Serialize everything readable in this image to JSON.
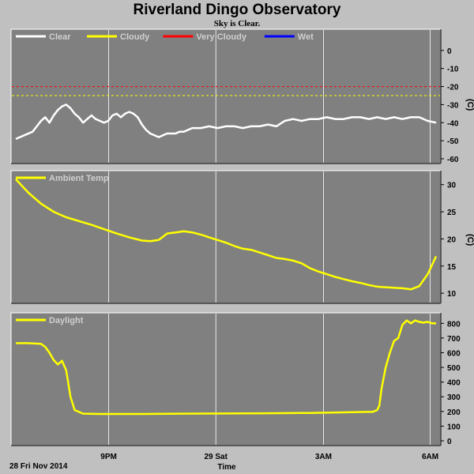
{
  "header": {
    "title": "Riverland Dingo Observatory",
    "subtitle": "Sky is Clear."
  },
  "footer": {
    "date_label": "28 Fri Nov 2014",
    "x_axis_label": "Time"
  },
  "colors": {
    "page_bg": "#c0c0c0",
    "panel_bg": "#808080",
    "grid": "#ffffff",
    "clear": "#ffffff",
    "cloudy": "#ffff00",
    "very_cloudy": "#ff0000",
    "wet": "#0000ff",
    "ambient": "#ffff00",
    "daylight": "#ffff00"
  },
  "chart_data": [
    {
      "type": "line",
      "name": "sky",
      "xlabel": "Time",
      "ylabel": "(C)",
      "ylim": [
        -60,
        10
      ],
      "xlim": [
        0,
        100
      ],
      "yticks": [
        0,
        -10,
        -20,
        -30,
        -40,
        -50,
        -60
      ],
      "x_ticks": [
        {
          "x": 22.1,
          "label": "9PM"
        },
        {
          "x": 47.6,
          "label": "29 Sat"
        },
        {
          "x": 73.2,
          "label": "3AM"
        },
        {
          "x": 98.6,
          "label": "6AM"
        }
      ],
      "legend": [
        {
          "label": "Clear",
          "color": "#ffffff"
        },
        {
          "label": "Cloudy",
          "color": "#ffff00"
        },
        {
          "label": "Very Cloudy",
          "color": "#ff0000"
        },
        {
          "label": "Wet",
          "color": "#0000ff"
        }
      ],
      "thresholds": [
        {
          "name": "Very Cloudy",
          "value": -20,
          "color": "#ff0000"
        },
        {
          "name": "Cloudy",
          "value": -25,
          "color": "#ffff00"
        }
      ],
      "series": [
        {
          "name": "Clear",
          "color": "#ffffff",
          "x": [
            0,
            2,
            4,
            5,
            6,
            7,
            8,
            9,
            10,
            11,
            12,
            13,
            14,
            15,
            16,
            17,
            18,
            19,
            20,
            21,
            22,
            23,
            24,
            25,
            26,
            27,
            28,
            29,
            30,
            31,
            32,
            33,
            34,
            35,
            36,
            37,
            38,
            39,
            40,
            41,
            42,
            44,
            46,
            48,
            50,
            52,
            54,
            56,
            58,
            60,
            62,
            64,
            66,
            68,
            70,
            72,
            74,
            76,
            78,
            80,
            82,
            84,
            86,
            88,
            90,
            92,
            94,
            96,
            98,
            100
          ],
          "y": [
            -49,
            -47,
            -45,
            -42,
            -39,
            -37,
            -40,
            -36,
            -33,
            -31,
            -30,
            -32,
            -35,
            -37,
            -40,
            -38,
            -36,
            -38,
            -39,
            -40,
            -39,
            -36,
            -35,
            -37,
            -35,
            -34,
            -35,
            -37,
            -41,
            -44,
            -46,
            -47,
            -48,
            -47,
            -46,
            -46,
            -46,
            -45,
            -45,
            -44,
            -43,
            -43,
            -42,
            -43,
            -42,
            -42,
            -43,
            -42,
            -42,
            -41,
            -42,
            -39,
            -38,
            -39,
            -38,
            -38,
            -37,
            -38,
            -38,
            -37,
            -37,
            -38,
            -37,
            -38,
            -37,
            -38,
            -37,
            -37,
            -39,
            -40
          ]
        }
      ]
    },
    {
      "type": "line",
      "name": "ambient",
      "ylabel": "(C)",
      "ylim": [
        9,
        32
      ],
      "xlim": [
        0,
        100
      ],
      "yticks": [
        30,
        25,
        20,
        15,
        10
      ],
      "x_ticks": [
        {
          "x": 22.1,
          "label": "9PM"
        },
        {
          "x": 47.6,
          "label": "29 Sat"
        },
        {
          "x": 73.2,
          "label": "3AM"
        },
        {
          "x": 98.6,
          "label": "6AM"
        }
      ],
      "legend": [
        {
          "label": "Ambient Temp",
          "color": "#ffff00"
        }
      ],
      "series": [
        {
          "name": "Ambient Temp",
          "color": "#ffff00",
          "x": [
            0,
            3,
            6,
            9,
            12,
            15,
            18,
            21,
            24,
            27,
            30,
            32,
            34,
            36,
            38,
            40,
            42,
            44,
            46,
            48,
            50,
            52,
            54,
            56,
            58,
            60,
            62,
            64,
            66,
            68,
            70,
            72,
            74,
            76,
            78,
            80,
            82,
            84,
            86,
            88,
            90,
            92,
            94,
            96,
            98,
            100
          ],
          "y": [
            31,
            28.5,
            26.5,
            25,
            24,
            23.3,
            22.6,
            21.8,
            21,
            20.3,
            19.7,
            19.6,
            19.8,
            21,
            21.2,
            21.4,
            21.2,
            20.8,
            20.3,
            19.8,
            19.3,
            18.7,
            18.2,
            18,
            17.5,
            17,
            16.5,
            16.3,
            16,
            15.5,
            14.6,
            14,
            13.5,
            13,
            12.6,
            12.2,
            11.9,
            11.5,
            11.2,
            11.1,
            11,
            10.9,
            10.7,
            11.3,
            13.5,
            16.8
          ]
        }
      ]
    },
    {
      "type": "line",
      "name": "daylight",
      "ylim": [
        0,
        850
      ],
      "xlim": [
        0,
        100
      ],
      "yticks": [
        800,
        700,
        600,
        500,
        400,
        300,
        200,
        100,
        0
      ],
      "x_ticks": [
        {
          "x": 22.1,
          "label": "9PM"
        },
        {
          "x": 47.6,
          "label": "29 Sat"
        },
        {
          "x": 73.2,
          "label": "3AM"
        },
        {
          "x": 98.6,
          "label": "6AM"
        }
      ],
      "legend": [
        {
          "label": "Daylight",
          "color": "#ffff00"
        }
      ],
      "series": [
        {
          "name": "Daylight",
          "color": "#ffff00",
          "x": [
            0,
            3,
            6,
            7,
            8,
            9,
            10,
            11,
            12,
            13,
            14,
            16,
            20,
            30,
            40,
            50,
            60,
            70,
            80,
            85,
            86,
            86.5,
            87,
            88,
            89,
            90,
            91,
            92,
            93,
            94,
            95,
            96,
            97,
            98,
            99,
            100
          ],
          "y": [
            665,
            665,
            660,
            640,
            600,
            550,
            520,
            545,
            480,
            300,
            210,
            185,
            183,
            183,
            185,
            186,
            188,
            190,
            195,
            198,
            210,
            240,
            350,
            500,
            600,
            680,
            700,
            790,
            820,
            800,
            820,
            810,
            805,
            810,
            800,
            800
          ]
        }
      ]
    }
  ]
}
